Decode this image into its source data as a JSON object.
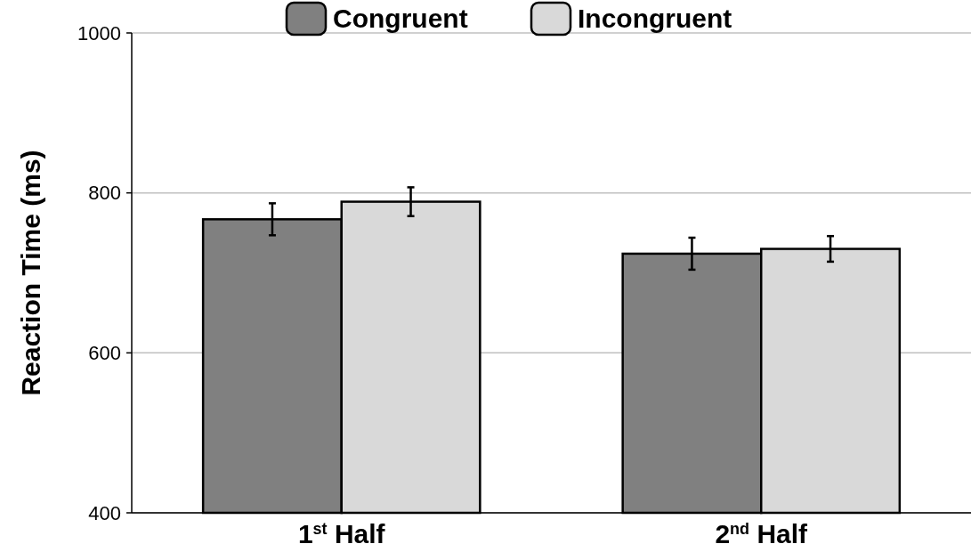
{
  "chart_data": {
    "type": "bar",
    "ylabel": "Reaction Time (ms)",
    "categories": [
      "1$^{st}$ Half",
      "2$^{nd}$ Half"
    ],
    "series": [
      {
        "name": "Congruent",
        "color": "#808080",
        "values": [
          767,
          724
        ],
        "errors": [
          20,
          20
        ]
      },
      {
        "name": "Incongruent",
        "color": "#d9d9d9",
        "values": [
          789,
          730
        ],
        "errors": [
          18,
          16
        ]
      }
    ],
    "ylim": [
      400,
      1000
    ],
    "yticks": [
      400,
      600,
      800,
      1000
    ],
    "grid": "y",
    "legend": "top"
  }
}
